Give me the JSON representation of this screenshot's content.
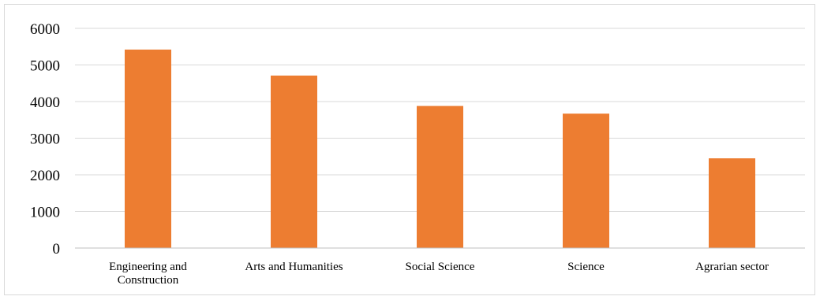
{
  "chart_data": {
    "type": "bar",
    "categories": [
      [
        "Engineering and",
        "Construction"
      ],
      [
        "Arts and Humanities"
      ],
      [
        "Social Science"
      ],
      [
        "Science"
      ],
      [
        "Agrarian sector"
      ]
    ],
    "values": [
      5420,
      4710,
      3880,
      3670,
      2450
    ],
    "ylim": [
      0,
      6000
    ],
    "yticks": [
      "0",
      "1000",
      "2000",
      "3000",
      "4000",
      "5000",
      "6000"
    ],
    "grid": true,
    "legend": "none",
    "colors": {
      "bar": "#ed7d31",
      "grid": "#d9d9d9",
      "axis": "#bfbfbf"
    }
  }
}
